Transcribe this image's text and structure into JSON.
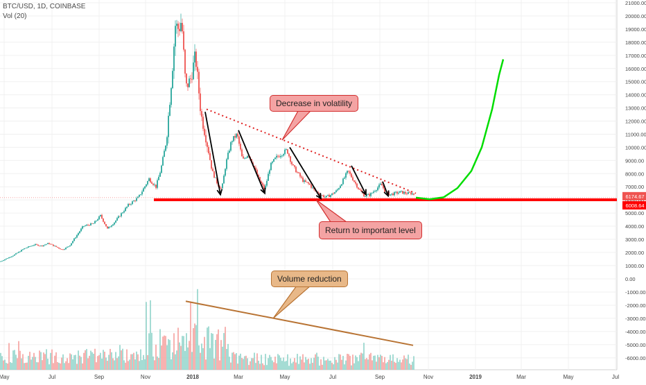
{
  "header": {
    "symbol": "BTC/USD, 1D, COINBASE",
    "volume": "Vol (20)"
  },
  "colors": {
    "up": "#26a69a",
    "down": "#ef5350",
    "support": "#ff0000",
    "projection": "#00dd00",
    "trendline": "#e02020",
    "volume_trend": "#b87333",
    "callout_red_fill": "#f4a3a3",
    "callout_red_border": "#d32f2f",
    "callout_tan_fill": "#e8b888",
    "callout_tan_border": "#b87333"
  },
  "chart_data": {
    "type": "candlestick",
    "title": "BTC/USD, 1D, COINBASE",
    "x_ticks": [
      "May",
      "Jul",
      "Sep",
      "Nov",
      "2018",
      "Mar",
      "May",
      "Jul",
      "Sep",
      "Nov",
      "2019",
      "Mar",
      "May",
      "Jul"
    ],
    "price_ticks": [
      "21000.00",
      "20000.00",
      "19000.00",
      "18000.00",
      "17000.00",
      "16000.00",
      "15000.00",
      "14000.00",
      "13000.00",
      "12000.00",
      "11000.00",
      "10000.00",
      "9000.00",
      "8000.00",
      "7000.00",
      "6000.00",
      "5000.00",
      "4000.00",
      "3000.00",
      "2000.00",
      "1000.00"
    ],
    "volume_ticks": [
      "0.00",
      "-1000.00",
      "-2000.00",
      "-3000.00",
      "-4000.00",
      "-5000.00",
      "-6000.00"
    ],
    "price_tag_current": "6174.67",
    "price_tag_support": "6008.64",
    "price_path": [
      [
        0,
        1300
      ],
      [
        20,
        1800
      ],
      [
        35,
        2300
      ],
      [
        50,
        2600
      ],
      [
        60,
        2500
      ],
      [
        70,
        2700
      ],
      [
        90,
        2200
      ],
      [
        100,
        2500
      ],
      [
        120,
        4000
      ],
      [
        135,
        4200
      ],
      [
        145,
        4800
      ],
      [
        155,
        3800
      ],
      [
        165,
        4300
      ],
      [
        185,
        5600
      ],
      [
        200,
        6200
      ],
      [
        215,
        7600
      ],
      [
        225,
        7000
      ],
      [
        232,
        8300
      ],
      [
        240,
        10500
      ],
      [
        248,
        15500
      ],
      [
        253,
        19300
      ],
      [
        258,
        19000
      ],
      [
        262,
        19700
      ],
      [
        268,
        14500
      ],
      [
        275,
        15200
      ],
      [
        282,
        17000
      ],
      [
        290,
        12500
      ],
      [
        298,
        10500
      ],
      [
        306,
        8200
      ],
      [
        314,
        7200
      ],
      [
        320,
        6800
      ],
      [
        326,
        8800
      ],
      [
        334,
        10500
      ],
      [
        342,
        11000
      ],
      [
        350,
        9000
      ],
      [
        358,
        9500
      ],
      [
        366,
        8600
      ],
      [
        374,
        7500
      ],
      [
        382,
        6800
      ],
      [
        390,
        8600
      ],
      [
        398,
        9200
      ],
      [
        406,
        9500
      ],
      [
        414,
        9800
      ],
      [
        422,
        8600
      ],
      [
        430,
        8000
      ],
      [
        438,
        7400
      ],
      [
        446,
        7200
      ],
      [
        454,
        6700
      ],
      [
        462,
        6400
      ],
      [
        470,
        6200
      ],
      [
        478,
        6400
      ],
      [
        486,
        6700
      ],
      [
        494,
        7400
      ],
      [
        502,
        8200
      ],
      [
        510,
        7500
      ],
      [
        518,
        6800
      ],
      [
        526,
        6300
      ],
      [
        534,
        6400
      ],
      [
        542,
        6800
      ],
      [
        550,
        7200
      ],
      [
        556,
        6600
      ],
      [
        562,
        6400
      ],
      [
        570,
        6500
      ],
      [
        578,
        6600
      ],
      [
        586,
        6500
      ],
      [
        594,
        6500
      ],
      [
        598,
        6400
      ]
    ],
    "projection_path": [
      [
        600,
        6174
      ],
      [
        620,
        6050
      ],
      [
        640,
        6200
      ],
      [
        660,
        6900
      ],
      [
        680,
        8200
      ],
      [
        695,
        10000
      ],
      [
        710,
        12900
      ],
      [
        720,
        15500
      ],
      [
        726,
        16700
      ]
    ],
    "trendline": [
      [
        298,
        12900
      ],
      [
        600,
        6500
      ]
    ],
    "support_level": 6008.64,
    "down_arrows": [
      [
        [
          296,
          12700
        ],
        [
          318,
          6400
        ]
      ],
      [
        [
          344,
          11300
        ],
        [
          382,
          6500
        ]
      ],
      [
        [
          418,
          10000
        ],
        [
          463,
          6100
        ]
      ],
      [
        [
          507,
          8600
        ],
        [
          528,
          6400
        ]
      ],
      [
        [
          552,
          7400
        ],
        [
          560,
          6300
        ]
      ]
    ],
    "volume_trend": [
      [
        268,
        -1700
      ],
      [
        596,
        -5050
      ]
    ],
    "volume_range": [
      -6000,
      0
    ]
  },
  "annotations": {
    "volatility": "Decrease in volatility",
    "support": "Return to important level",
    "volume": "Volume reduction"
  }
}
